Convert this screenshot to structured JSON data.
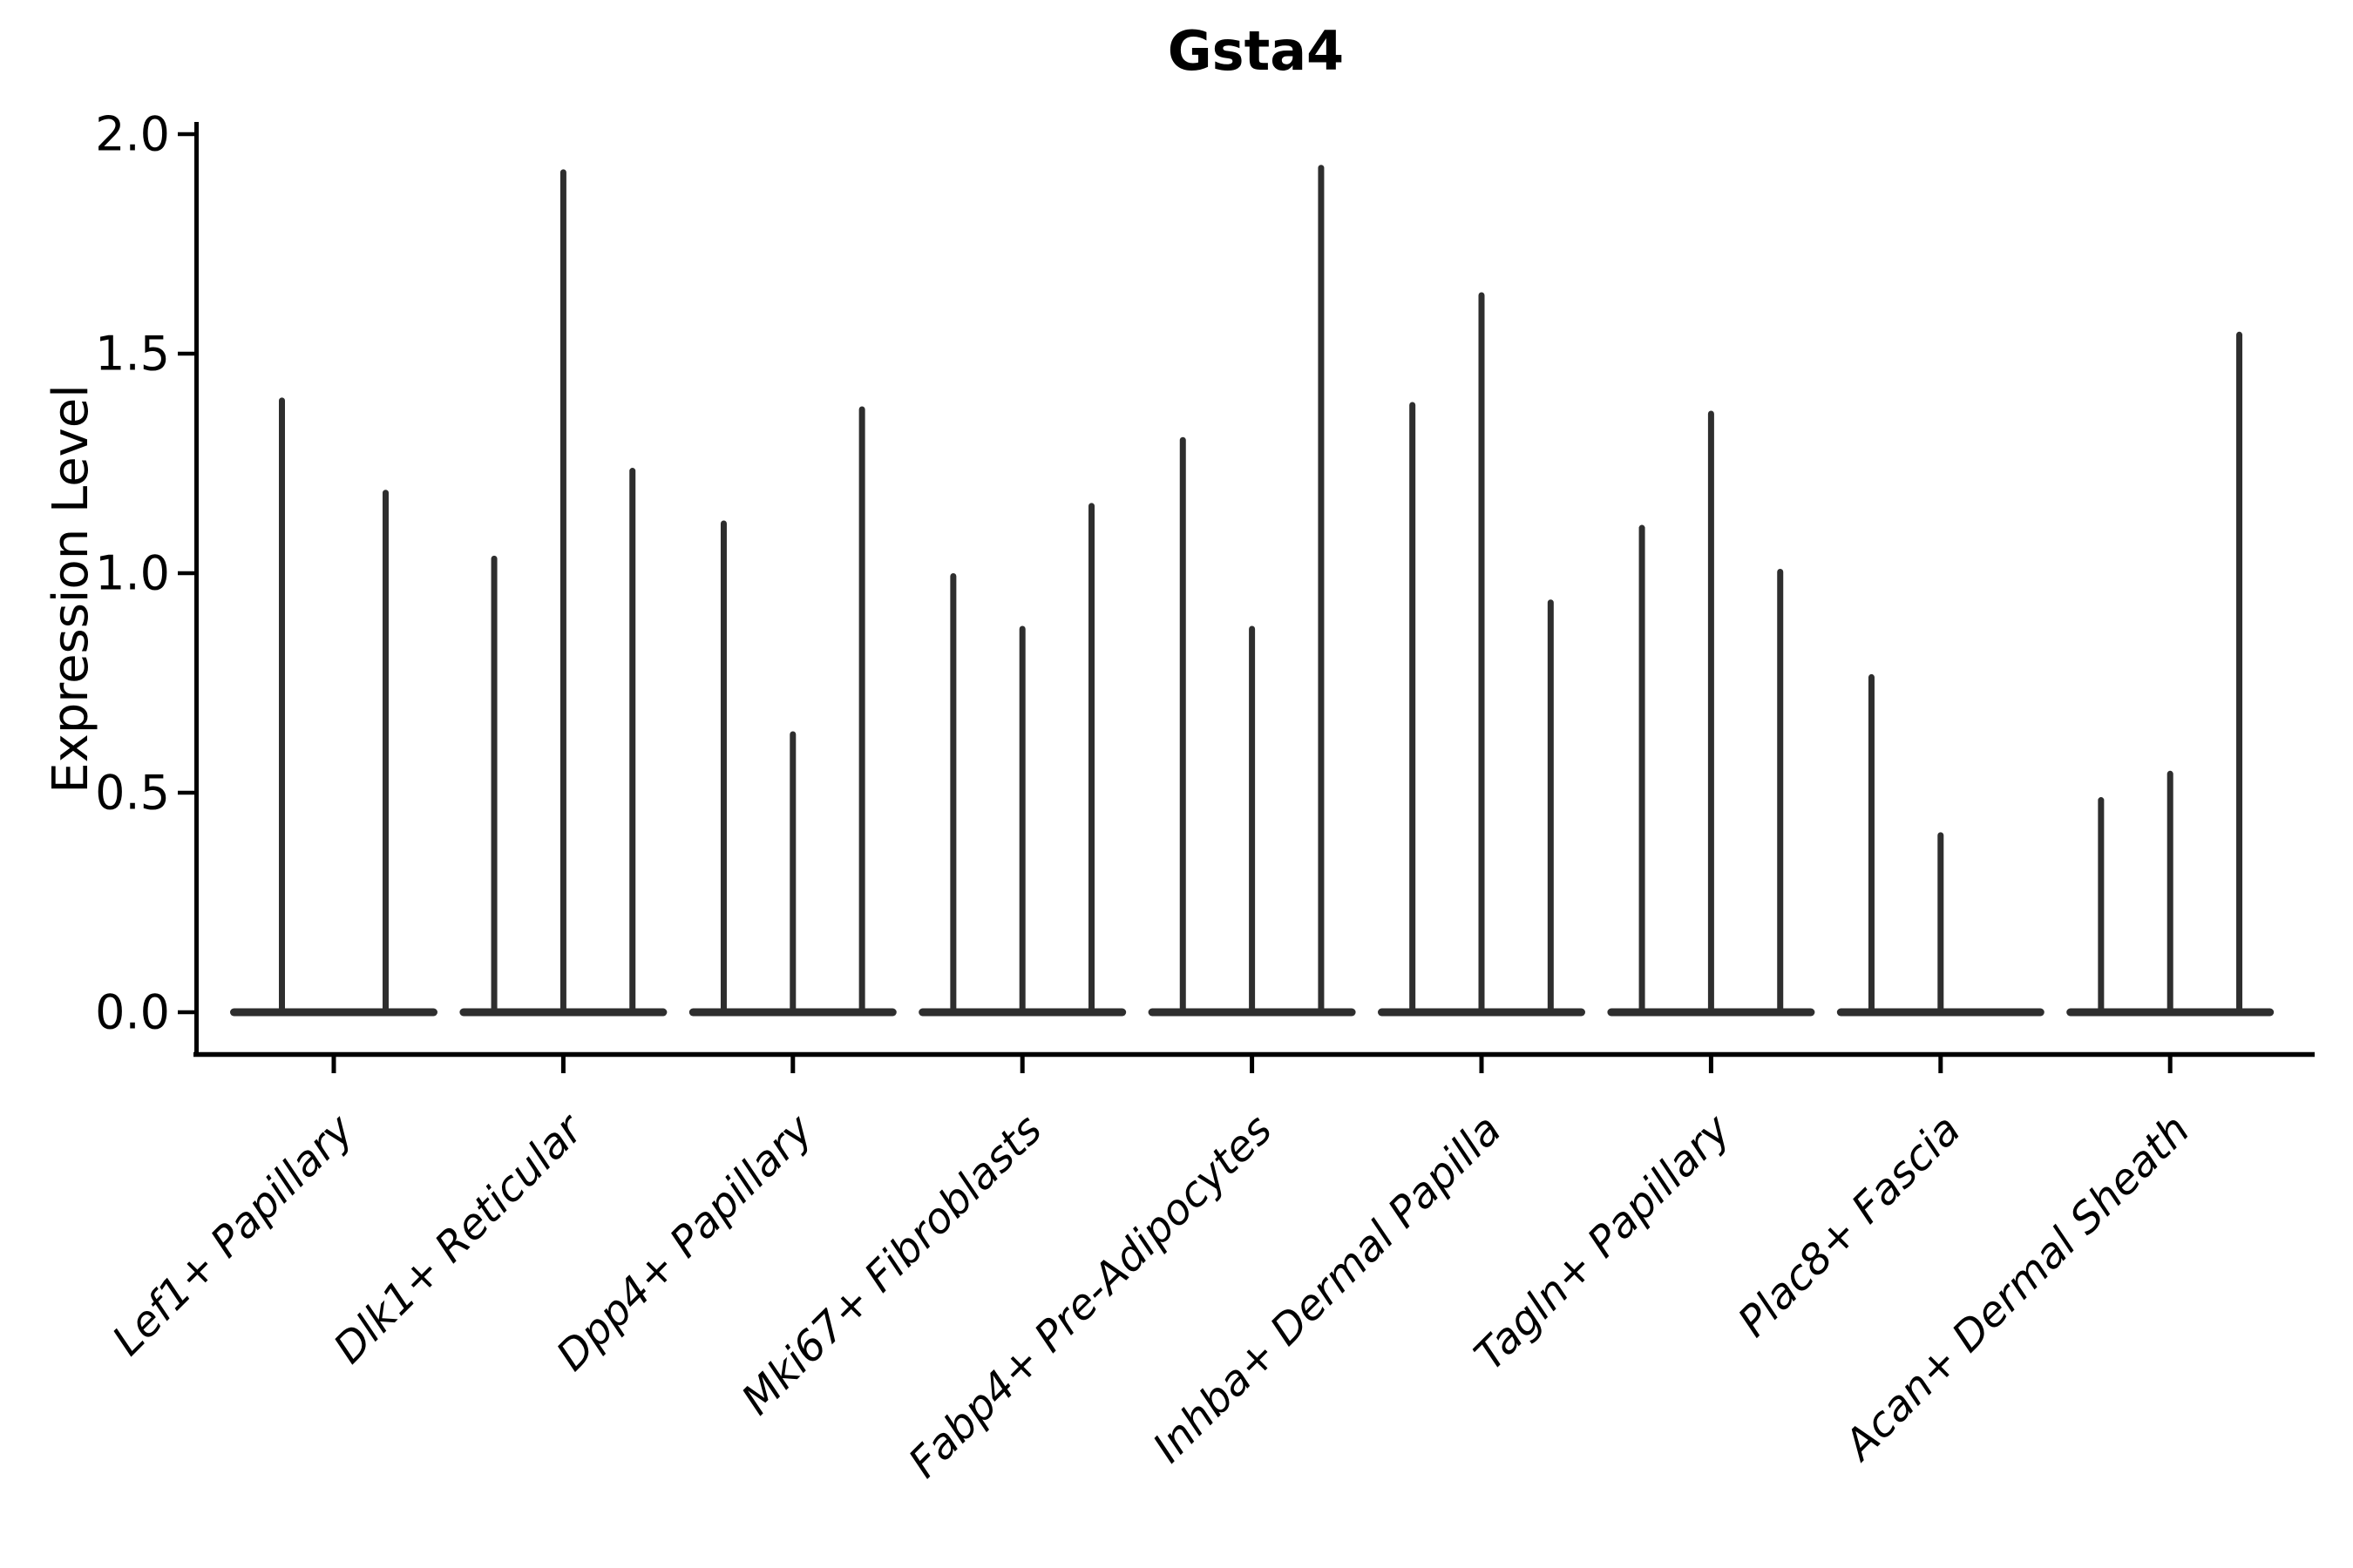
{
  "figure": {
    "background_color": "#ffffff",
    "text_color": "#000000"
  },
  "chart_data": {
    "type": "violin",
    "title": "Gsta4",
    "xlabel": "",
    "ylabel": "Expression Level",
    "ylim": [
      0.0,
      2.0
    ],
    "yticks": [
      "0.0",
      "0.5",
      "1.0",
      "1.5",
      "2.0"
    ],
    "ytick_values": [
      0.0,
      0.5,
      1.0,
      1.5,
      2.0
    ],
    "grid": false,
    "legend_position": "none",
    "violin_color": "#2e2e2e",
    "axis_color": "#000000",
    "categories": [
      "Lef1+ Papillary",
      "Dlk1+ Reticular",
      "Dpp4+ Papillary",
      "Mki67+ Fibroblasts",
      "Fabp4+ Pre-Adipocytes",
      "Inhba+ Dermal Papilla",
      "Tagln+ Papillary",
      "Plac8+ Fascia",
      "Acan+ Dermal Sheath"
    ],
    "series": [
      {
        "category": "Lef1+ Papillary",
        "violin_peak_expression": [
          1.4,
          1.19
        ]
      },
      {
        "category": "Dlk1+ Reticular",
        "violin_peak_expression": [
          1.04,
          1.92,
          1.24
        ]
      },
      {
        "category": "Dpp4+ Papillary",
        "violin_peak_expression": [
          1.12,
          0.64,
          1.38
        ]
      },
      {
        "category": "Mki67+ Fibroblasts",
        "violin_peak_expression": [
          1.0,
          0.88,
          1.16
        ]
      },
      {
        "category": "Fabp4+ Pre-Adipocytes",
        "violin_peak_expression": [
          1.31,
          0.88,
          1.93
        ]
      },
      {
        "category": "Inhba+ Dermal Papilla",
        "violin_peak_expression": [
          1.39,
          1.64,
          0.94
        ]
      },
      {
        "category": "Tagln+ Papillary",
        "violin_peak_expression": [
          1.11,
          1.37,
          1.01
        ]
      },
      {
        "category": "Plac8+ Fascia",
        "violin_peak_expression": [
          0.77,
          0.41,
          0.0
        ]
      },
      {
        "category": "Acan+ Dermal Sheath",
        "violin_peak_expression": [
          0.49,
          0.55,
          1.55
        ]
      }
    ]
  }
}
